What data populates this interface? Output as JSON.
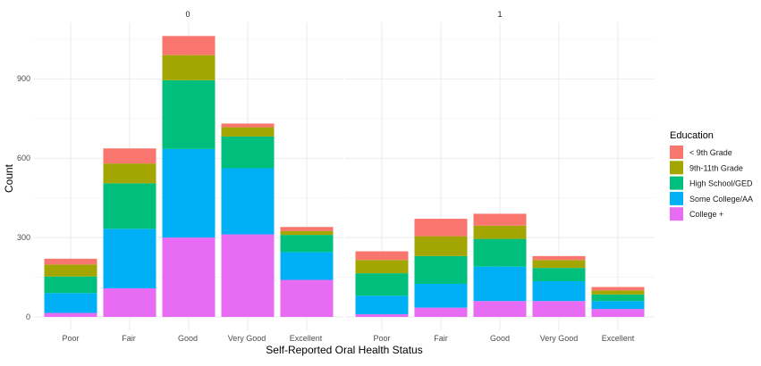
{
  "chart_data": {
    "type": "bar",
    "stacked": true,
    "facets": [
      {
        "label": "0"
      },
      {
        "label": "1"
      }
    ],
    "categories": [
      "Poor",
      "Fair",
      "Good",
      "Very Good",
      "Excellent"
    ],
    "xlabel": "Self-Reported Oral Health Status",
    "ylabel": "Count",
    "ylim": [
      0,
      1100
    ],
    "yticks": [
      "0",
      "300",
      "600",
      "900"
    ],
    "grid": true,
    "legend": {
      "title": "Education",
      "placement": "right"
    },
    "series": [
      {
        "name": "< 9th Grade",
        "color": "#F8766D",
        "values": [
          [
            22,
            57,
            72,
            14,
            15
          ],
          [
            33,
            66,
            45,
            15,
            13
          ]
        ]
      },
      {
        "name": "9th-11th Grade",
        "color": "#A3A500",
        "values": [
          [
            45,
            75,
            95,
            35,
            15
          ],
          [
            50,
            75,
            50,
            30,
            15
          ]
        ]
      },
      {
        "name": "High School/GED",
        "color": "#00BF7D",
        "values": [
          [
            63,
            172,
            260,
            120,
            65
          ],
          [
            85,
            105,
            105,
            50,
            25
          ]
        ]
      },
      {
        "name": "Some College/AA",
        "color": "#00B0F6",
        "values": [
          [
            75,
            225,
            335,
            250,
            105
          ],
          [
            70,
            90,
            130,
            75,
            30
          ]
        ]
      },
      {
        "name": "College +",
        "color": "#E76BF3",
        "values": [
          [
            15,
            108,
            300,
            312,
            140
          ],
          [
            10,
            35,
            60,
            60,
            30
          ]
        ]
      }
    ]
  }
}
